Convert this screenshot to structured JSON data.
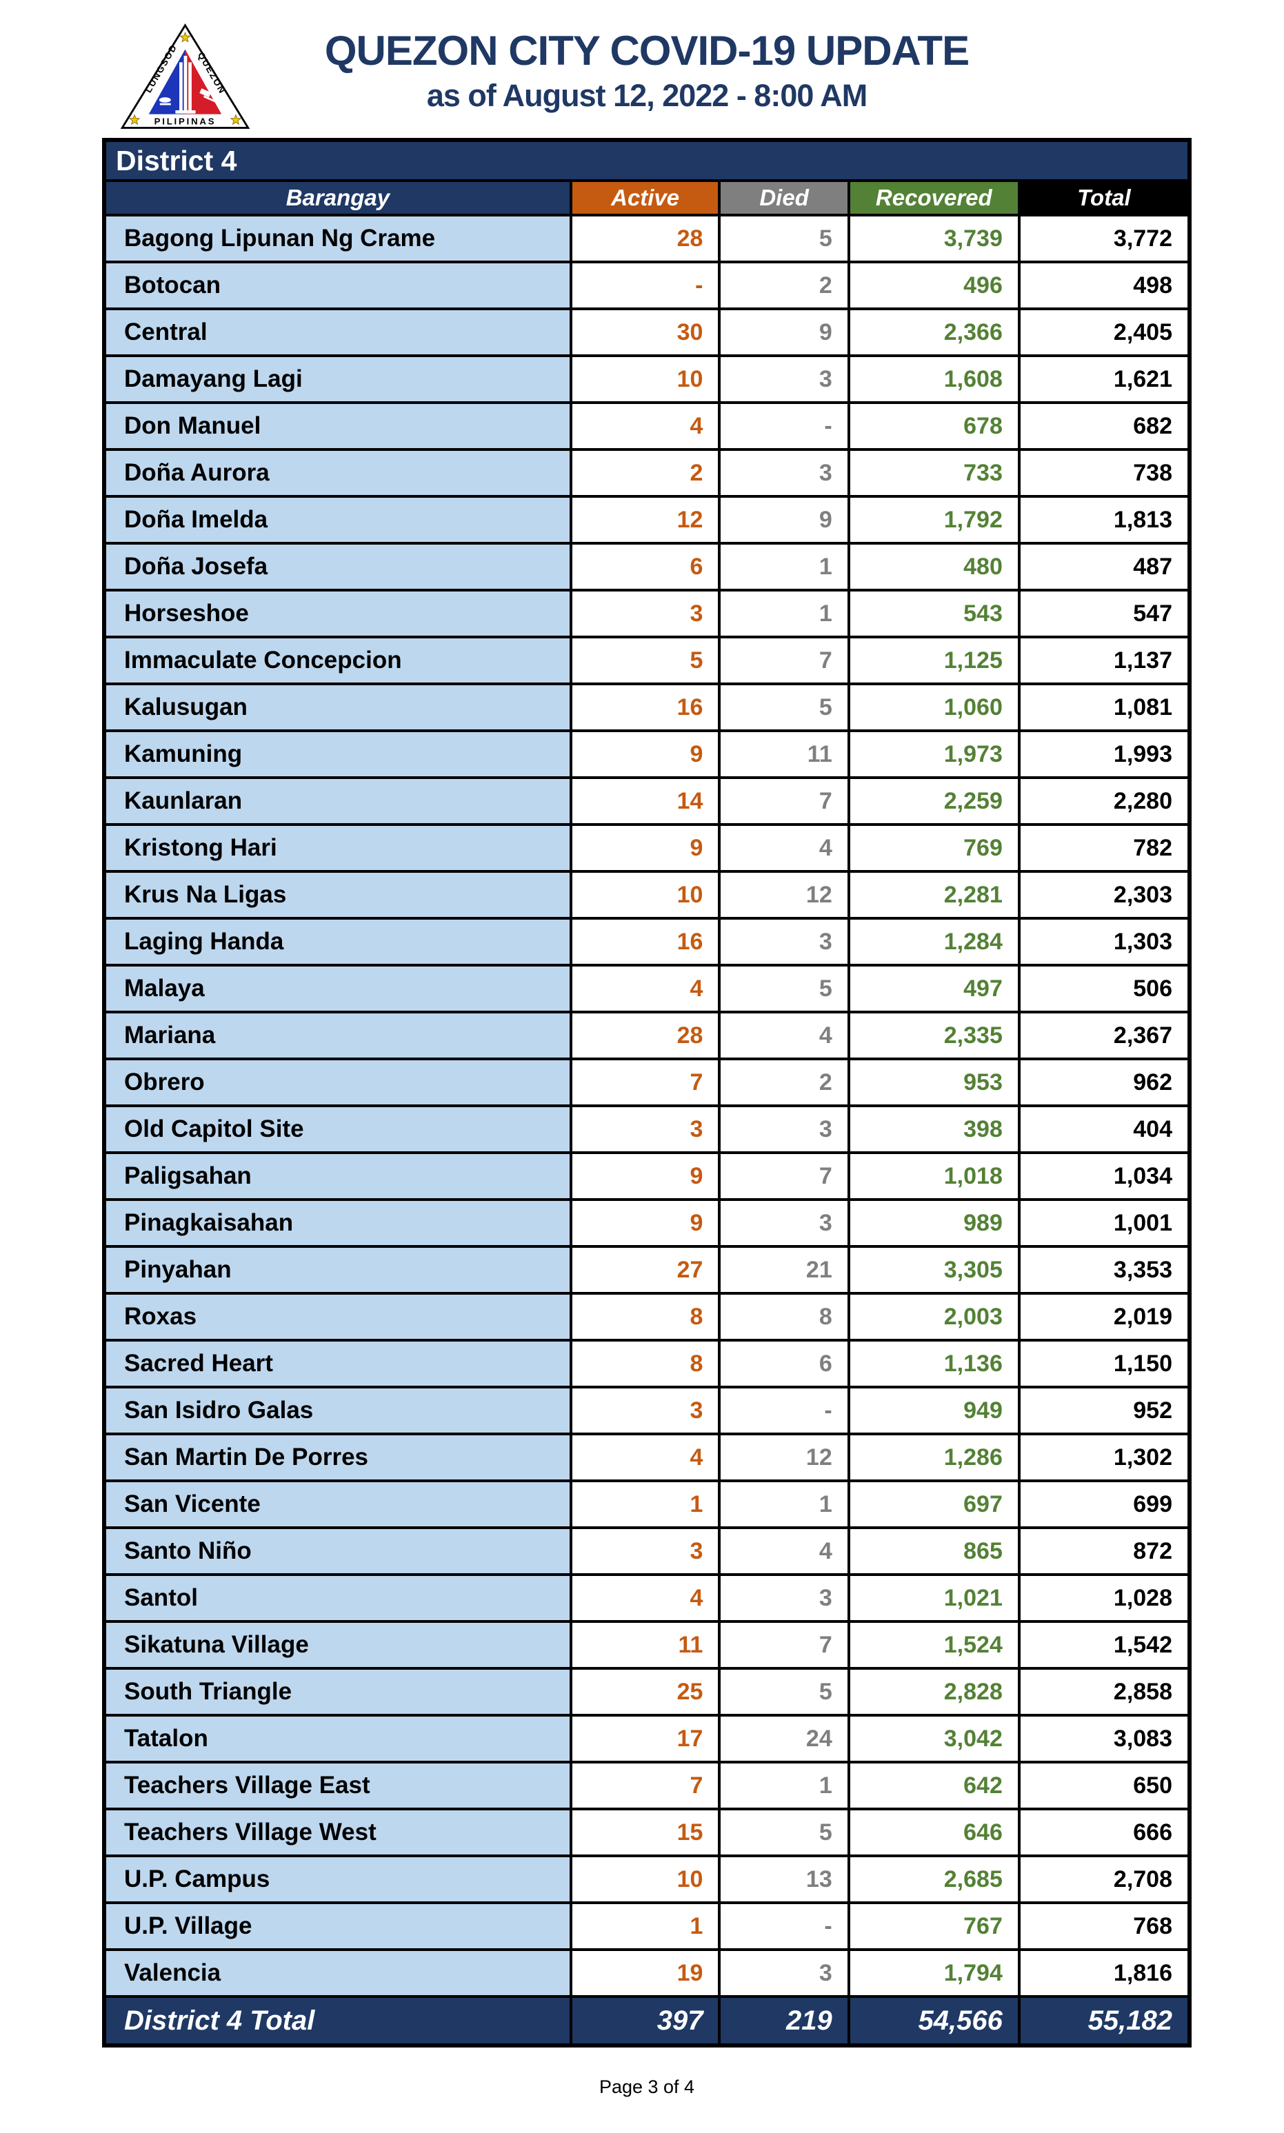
{
  "header": {
    "title": "QUEZON CITY COVID-19 UPDATE",
    "subtitle": "as of August 12, 2022 - 8:00 AM",
    "logo": {
      "icon": "quezon-city-seal",
      "text_left": "LUNGSOD",
      "text_right": "QUEZON",
      "text_bottom": "PILIPINAS"
    }
  },
  "table": {
    "district_label": "District 4",
    "columns": [
      "Barangay",
      "Active",
      "Died",
      "Recovered",
      "Total"
    ],
    "rows": [
      [
        "Bagong Lipunan Ng Crame",
        "28",
        "5",
        "3,739",
        "3,772"
      ],
      [
        "Botocan",
        "-",
        "2",
        "496",
        "498"
      ],
      [
        "Central",
        "30",
        "9",
        "2,366",
        "2,405"
      ],
      [
        "Damayang Lagi",
        "10",
        "3",
        "1,608",
        "1,621"
      ],
      [
        "Don Manuel",
        "4",
        "-",
        "678",
        "682"
      ],
      [
        "Doña Aurora",
        "2",
        "3",
        "733",
        "738"
      ],
      [
        "Doña Imelda",
        "12",
        "9",
        "1,792",
        "1,813"
      ],
      [
        "Doña Josefa",
        "6",
        "1",
        "480",
        "487"
      ],
      [
        "Horseshoe",
        "3",
        "1",
        "543",
        "547"
      ],
      [
        "Immaculate Concepcion",
        "5",
        "7",
        "1,125",
        "1,137"
      ],
      [
        "Kalusugan",
        "16",
        "5",
        "1,060",
        "1,081"
      ],
      [
        "Kamuning",
        "9",
        "11",
        "1,973",
        "1,993"
      ],
      [
        "Kaunlaran",
        "14",
        "7",
        "2,259",
        "2,280"
      ],
      [
        "Kristong Hari",
        "9",
        "4",
        "769",
        "782"
      ],
      [
        "Krus Na Ligas",
        "10",
        "12",
        "2,281",
        "2,303"
      ],
      [
        "Laging Handa",
        "16",
        "3",
        "1,284",
        "1,303"
      ],
      [
        "Malaya",
        "4",
        "5",
        "497",
        "506"
      ],
      [
        "Mariana",
        "28",
        "4",
        "2,335",
        "2,367"
      ],
      [
        "Obrero",
        "7",
        "2",
        "953",
        "962"
      ],
      [
        "Old Capitol Site",
        "3",
        "3",
        "398",
        "404"
      ],
      [
        "Paligsahan",
        "9",
        "7",
        "1,018",
        "1,034"
      ],
      [
        "Pinagkaisahan",
        "9",
        "3",
        "989",
        "1,001"
      ],
      [
        "Pinyahan",
        "27",
        "21",
        "3,305",
        "3,353"
      ],
      [
        "Roxas",
        "8",
        "8",
        "2,003",
        "2,019"
      ],
      [
        "Sacred Heart",
        "8",
        "6",
        "1,136",
        "1,150"
      ],
      [
        "San Isidro Galas",
        "3",
        "-",
        "949",
        "952"
      ],
      [
        "San Martin De Porres",
        "4",
        "12",
        "1,286",
        "1,302"
      ],
      [
        "San Vicente",
        "1",
        "1",
        "697",
        "699"
      ],
      [
        "Santo Niño",
        "3",
        "4",
        "865",
        "872"
      ],
      [
        "Santol",
        "4",
        "3",
        "1,021",
        "1,028"
      ],
      [
        "Sikatuna Village",
        "11",
        "7",
        "1,524",
        "1,542"
      ],
      [
        "South Triangle",
        "25",
        "5",
        "2,828",
        "2,858"
      ],
      [
        "Tatalon",
        "17",
        "24",
        "3,042",
        "3,083"
      ],
      [
        "Teachers Village East",
        "7",
        "1",
        "642",
        "650"
      ],
      [
        "Teachers Village West",
        "15",
        "5",
        "646",
        "666"
      ],
      [
        "U.P. Campus",
        "10",
        "13",
        "2,685",
        "2,708"
      ],
      [
        "U.P. Village",
        "1",
        "-",
        "767",
        "768"
      ],
      [
        "Valencia",
        "19",
        "3",
        "1,794",
        "1,816"
      ]
    ],
    "total_row": [
      "District 4 Total",
      "397",
      "219",
      "54,566",
      "55,182"
    ]
  },
  "footer": {
    "page_label": "Page 3 of 4"
  },
  "colors": {
    "navy": "#1F3864",
    "light_blue": "#BDD7EE",
    "active_orange": "#C55A11",
    "died_gray": "#7F7F7F",
    "recovered_green": "#538135",
    "total_black": "#000000"
  }
}
